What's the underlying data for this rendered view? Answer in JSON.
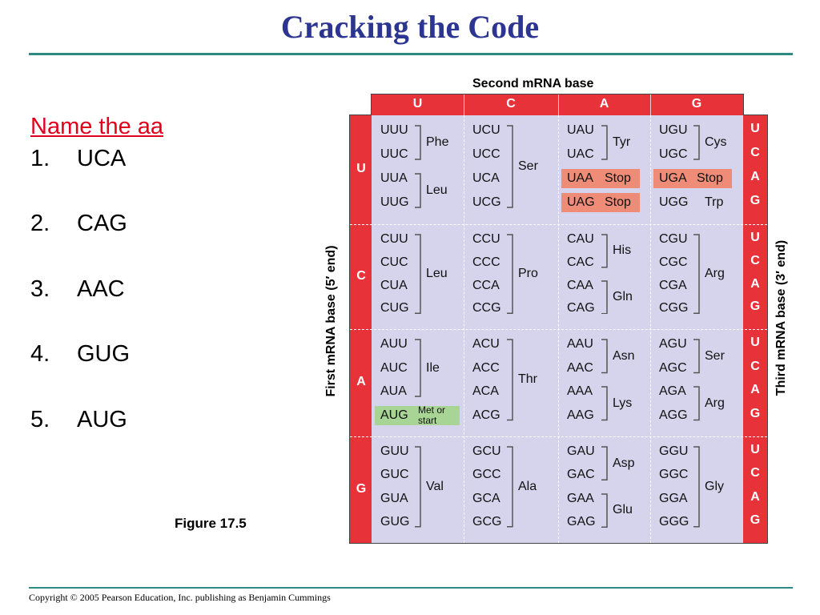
{
  "slide": {
    "title": "Cracking the Code",
    "copyright": "Copyright © 2005 Pearson Education, Inc. publishing as Benjamin Cummings",
    "figure_label": "Figure 17.5"
  },
  "questions": {
    "heading": "Name the aa",
    "items": [
      {
        "num": "1.",
        "text": "UCA"
      },
      {
        "num": "2.",
        "text": "CAG"
      },
      {
        "num": "3.",
        "text": "AAC"
      },
      {
        "num": "4.",
        "text": "GUG"
      },
      {
        "num": "5.",
        "text": "AUG"
      }
    ]
  },
  "codon_table": {
    "second_base_label": "Second mRNA base",
    "first_base_label": "First mRNA base (5′ end)",
    "third_base_label": "Third mRNA base (3′ end)",
    "second_bases": [
      "U",
      "C",
      "A",
      "G"
    ],
    "first_bases": [
      "U",
      "C",
      "A",
      "G"
    ],
    "third_bases": [
      "U",
      "C",
      "A",
      "G"
    ],
    "colors": {
      "header_red": "#e8323a",
      "panel_lavender": "#d6d4ec",
      "stop_highlight": "#ef8c78",
      "start_highlight": "#a8d596"
    },
    "blocks": [
      [
        {
          "codons": [
            "UUU",
            "UUC",
            "UUA",
            "UUG"
          ],
          "aa": [
            {
              "label": "Phe",
              "rows": [
                0,
                1
              ]
            },
            {
              "label": "Leu",
              "rows": [
                2,
                3
              ]
            }
          ]
        },
        {
          "codons": [
            "UCU",
            "UCC",
            "UCA",
            "UCG"
          ],
          "aa": [
            {
              "label": "Ser",
              "rows": [
                0,
                3
              ]
            }
          ]
        },
        {
          "codons": [
            "UAU",
            "UAC",
            "UAA",
            "UAG"
          ],
          "aa": [
            {
              "label": "Tyr",
              "rows": [
                0,
                1
              ]
            },
            {
              "label": "Stop",
              "rows": [
                2,
                2
              ],
              "stop": true
            },
            {
              "label": "Stop",
              "rows": [
                3,
                3
              ],
              "stop": true
            }
          ]
        },
        {
          "codons": [
            "UGU",
            "UGC",
            "UGA",
            "UGG"
          ],
          "aa": [
            {
              "label": "Cys",
              "rows": [
                0,
                1
              ]
            },
            {
              "label": "Stop",
              "rows": [
                2,
                2
              ],
              "stop": true
            },
            {
              "label": "Trp",
              "rows": [
                3,
                3
              ]
            }
          ]
        }
      ],
      [
        {
          "codons": [
            "CUU",
            "CUC",
            "CUA",
            "CUG"
          ],
          "aa": [
            {
              "label": "Leu",
              "rows": [
                0,
                3
              ]
            }
          ]
        },
        {
          "codons": [
            "CCU",
            "CCC",
            "CCA",
            "CCG"
          ],
          "aa": [
            {
              "label": "Pro",
              "rows": [
                0,
                3
              ]
            }
          ]
        },
        {
          "codons": [
            "CAU",
            "CAC",
            "CAA",
            "CAG"
          ],
          "aa": [
            {
              "label": "His",
              "rows": [
                0,
                1
              ]
            },
            {
              "label": "Gln",
              "rows": [
                2,
                3
              ]
            }
          ]
        },
        {
          "codons": [
            "CGU",
            "CGC",
            "CGA",
            "CGG"
          ],
          "aa": [
            {
              "label": "Arg",
              "rows": [
                0,
                3
              ]
            }
          ]
        }
      ],
      [
        {
          "codons": [
            "AUU",
            "AUC",
            "AUA",
            "AUG"
          ],
          "aa": [
            {
              "label": "Ile",
              "rows": [
                0,
                2
              ]
            },
            {
              "label": "Met or start",
              "rows": [
                3,
                3
              ],
              "start": true
            }
          ]
        },
        {
          "codons": [
            "ACU",
            "ACC",
            "ACA",
            "ACG"
          ],
          "aa": [
            {
              "label": "Thr",
              "rows": [
                0,
                3
              ]
            }
          ]
        },
        {
          "codons": [
            "AAU",
            "AAC",
            "AAA",
            "AAG"
          ],
          "aa": [
            {
              "label": "Asn",
              "rows": [
                0,
                1
              ]
            },
            {
              "label": "Lys",
              "rows": [
                2,
                3
              ]
            }
          ]
        },
        {
          "codons": [
            "AGU",
            "AGC",
            "AGA",
            "AGG"
          ],
          "aa": [
            {
              "label": "Ser",
              "rows": [
                0,
                1
              ]
            },
            {
              "label": "Arg",
              "rows": [
                2,
                3
              ]
            }
          ]
        }
      ],
      [
        {
          "codons": [
            "GUU",
            "GUC",
            "GUA",
            "GUG"
          ],
          "aa": [
            {
              "label": "Val",
              "rows": [
                0,
                3
              ]
            }
          ]
        },
        {
          "codons": [
            "GCU",
            "GCC",
            "GCA",
            "GCG"
          ],
          "aa": [
            {
              "label": "Ala",
              "rows": [
                0,
                3
              ]
            }
          ]
        },
        {
          "codons": [
            "GAU",
            "GAC",
            "GAA",
            "GAG"
          ],
          "aa": [
            {
              "label": "Asp",
              "rows": [
                0,
                1
              ]
            },
            {
              "label": "Glu",
              "rows": [
                2,
                3
              ]
            }
          ]
        },
        {
          "codons": [
            "GGU",
            "GGC",
            "GGA",
            "GGG"
          ],
          "aa": [
            {
              "label": "Gly",
              "rows": [
                0,
                3
              ]
            }
          ]
        }
      ]
    ]
  }
}
